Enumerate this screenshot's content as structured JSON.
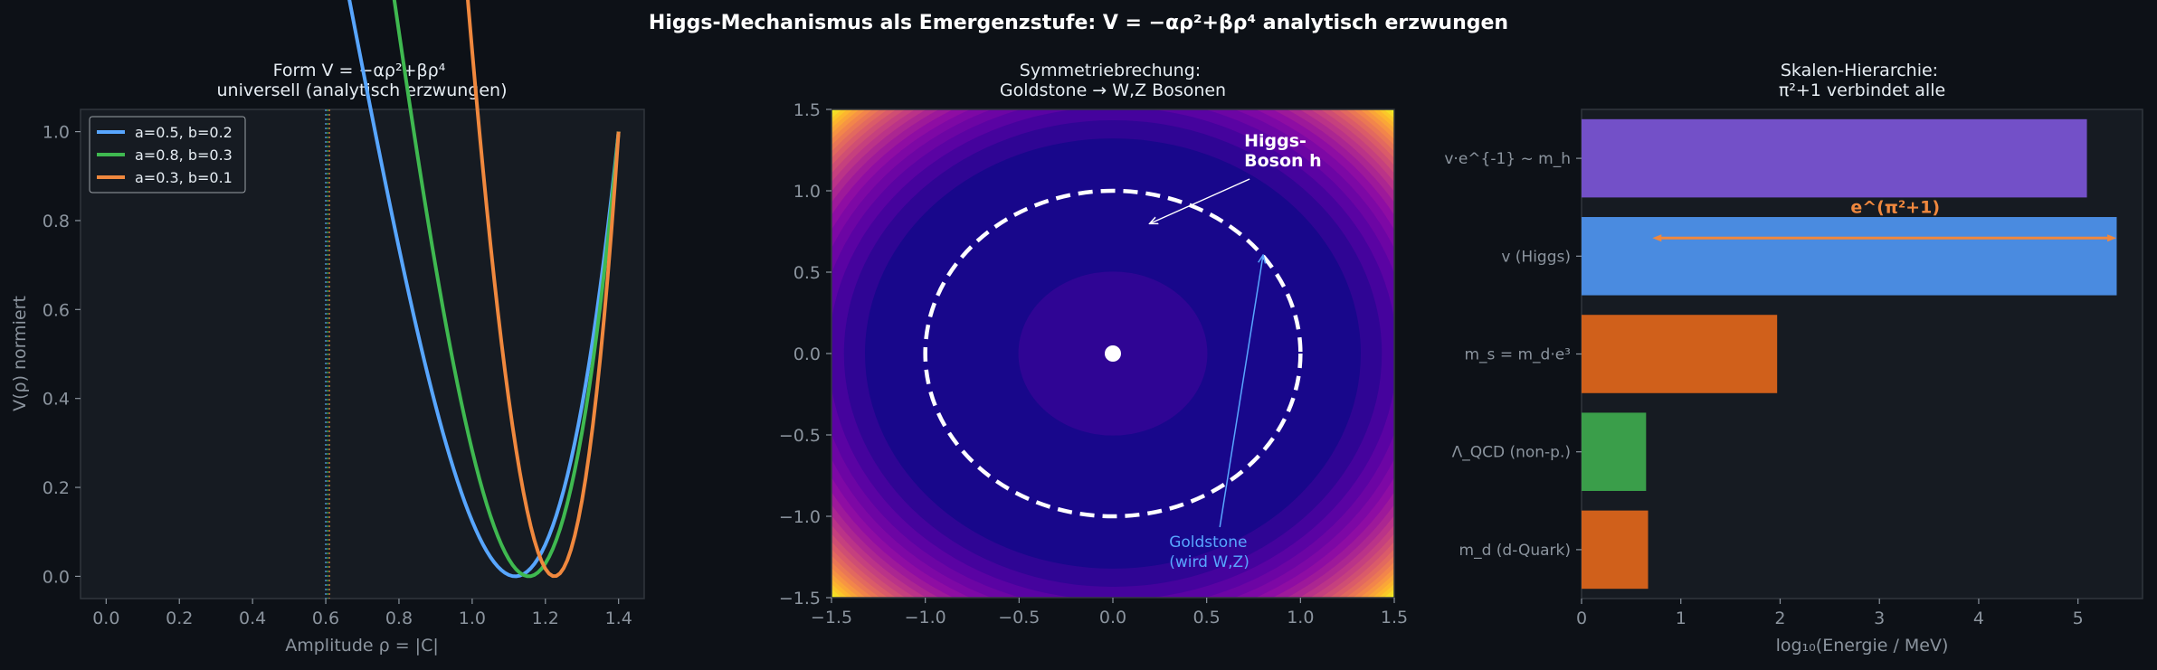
{
  "figure": {
    "suptitle": "Higgs-Mechanismus als Emergenzstufe: V = −αρ²+βρ⁴ analytisch erzwungen",
    "background": "#0d1117",
    "panel_background": "#161b22",
    "text_color": "#e6edf3",
    "muted_color": "#8b949e"
  },
  "chart_data": [
    {
      "type": "line",
      "title": "Form V = −αρ²+βρ⁴\nuniversell (analytisch erzwungen)",
      "xlabel": "Amplitude ρ = |C|",
      "ylabel": "V(ρ) normiert",
      "xlim": [
        -0.07,
        1.47
      ],
      "ylim": [
        -0.05,
        1.05
      ],
      "xticks": [
        0.0,
        0.2,
        0.4,
        0.6,
        0.8,
        1.0,
        1.2,
        1.4
      ],
      "yticks": [
        0.0,
        0.2,
        0.4,
        0.6,
        0.8,
        1.0
      ],
      "xtick_labels": [
        "0.0",
        "0.2",
        "0.4",
        "0.6",
        "0.8",
        "1.0",
        "1.2",
        "1.4"
      ],
      "ytick_labels": [
        "0.0",
        "0.2",
        "0.4",
        "0.6",
        "0.8",
        "1.0"
      ],
      "x_range": [
        0.0,
        1.4
      ],
      "legend_position": "top-left",
      "series": [
        {
          "name": "a=0.5, b=0.2",
          "color": "#58a6ff",
          "alpha": 0.5,
          "beta": 0.2,
          "vline_x": 0.6
        },
        {
          "name": "a=0.8, b=0.3",
          "color": "#3fb950",
          "alpha": 0.8,
          "beta": 0.3,
          "vline_x": 0.605
        },
        {
          "name": "a=0.3, b=0.1",
          "color": "#f0883e",
          "alpha": 0.3,
          "beta": 0.1,
          "vline_x": 0.61
        }
      ],
      "grid": false
    },
    {
      "type": "heatmap",
      "title": "Symmetriebrechung:\nGoldstone → W,Z Bosonen",
      "xlim": [
        -1.5,
        1.5
      ],
      "ylim": [
        -1.5,
        1.5
      ],
      "xticks": [
        -1.5,
        -1.0,
        -0.5,
        0.0,
        0.5,
        1.0,
        1.5
      ],
      "yticks": [
        -1.5,
        -1.0,
        -0.5,
        0.0,
        0.5,
        1.0,
        1.5
      ],
      "xtick_labels": [
        "−1.5",
        "−1.0",
        "−0.5",
        "0.0",
        "0.5",
        "1.0",
        "1.5"
      ],
      "ytick_labels": [
        "−1.5",
        "−1.0",
        "−0.5",
        "0.0",
        "0.5",
        "1.0",
        "1.5"
      ],
      "colormap": "plasma",
      "vacuum_circle_radius": 1.0,
      "center_point": [
        0,
        0
      ],
      "annotations": [
        {
          "text": "Higgs-\nBoson h",
          "color": "#ffffff",
          "text_at": [
            0.7,
            1.15
          ],
          "arrow_to": [
            0.2,
            0.8
          ]
        },
        {
          "text": "Goldstone\n(wird W,Z)",
          "color": "#58a6ff",
          "text_at": [
            0.3,
            -1.2
          ],
          "arrow_to": [
            0.8,
            0.6
          ]
        }
      ]
    },
    {
      "type": "bar",
      "orientation": "horizontal",
      "title": "Skalen-Hierarchie:\nπ²+1 verbindet alle",
      "xlabel": "log₁₀(Energie / MeV)",
      "xlim": [
        0,
        5.65
      ],
      "xticks": [
        0,
        1,
        2,
        3,
        4,
        5
      ],
      "xtick_labels": [
        "0",
        "1",
        "2",
        "3",
        "4",
        "5"
      ],
      "categories": [
        "v·e^{-1} ~ m_h",
        "v (Higgs)",
        "m_s = m_d·e³",
        "Λ_QCD (non-p.)",
        "m_d (d-Quark)"
      ],
      "values": [
        5.09,
        5.39,
        1.97,
        0.65,
        0.67
      ],
      "colors": [
        "#7350c8",
        "#4a8be0",
        "#d0601b",
        "#3a9e4a",
        "#d0601b"
      ],
      "annotation": {
        "text": "e^(π²+1)",
        "color": "#f0883e",
        "from_x": 0.75,
        "to_x": 5.35,
        "category": "v (Higgs)"
      }
    }
  ]
}
